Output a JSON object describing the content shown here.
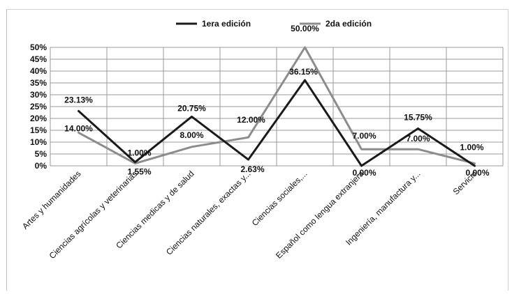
{
  "chart_data": {
    "type": "line",
    "categories": [
      "Artes y humanidades",
      "Ciencias agrícolas y veterinarias",
      "Ciencias medicas y de salud",
      "Ciencias naturales, exactas y...",
      "Ciencias sociales,...",
      "Español como lengua extranjera",
      "Ingeniería, manufactura y...",
      "Servicio"
    ],
    "series": [
      {
        "name": "1era edición",
        "color": "#1a1a1a",
        "values": [
          23.13,
          1.55,
          20.75,
          2.63,
          36.15,
          0.0,
          15.75,
          0.0
        ],
        "labels": [
          "23.13%",
          "1.55%",
          "20.75%",
          "2.63%",
          "36.15%",
          "0.00%",
          "15.75%",
          "0.00%"
        ]
      },
      {
        "name": "2da edición",
        "color": "#8c8c8c",
        "values": [
          14.0,
          1.0,
          8.0,
          12.0,
          50.0,
          7.0,
          7.0,
          1.0
        ],
        "labels": [
          "14.00%",
          "1.00%",
          "8.00%",
          "12.00%",
          "50.00%",
          "7.00%",
          "7.00%",
          "1.00%"
        ]
      }
    ],
    "yticks": [
      "0%",
      "5%",
      "10%",
      "15%",
      "20%",
      "25%",
      "30%",
      "35%",
      "40%",
      "45%",
      "50%"
    ],
    "ylim": [
      0,
      50
    ],
    "grid": true,
    "legend": "top-center"
  }
}
